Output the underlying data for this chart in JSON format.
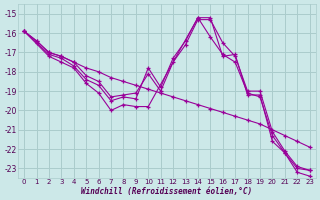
{
  "xlabel": "Windchill (Refroidissement éolien,°C)",
  "bg_color": "#cce8e8",
  "line_color": "#990099",
  "grid_color": "#aacccc",
  "xlim": [
    -0.5,
    23.5
  ],
  "ylim": [
    -23.5,
    -14.5
  ],
  "yticks": [
    -23,
    -22,
    -21,
    -20,
    -19,
    -18,
    -17,
    -16,
    -15
  ],
  "xticks": [
    0,
    1,
    2,
    3,
    4,
    5,
    6,
    7,
    8,
    9,
    10,
    11,
    12,
    13,
    14,
    15,
    16,
    17,
    18,
    19,
    20,
    21,
    22,
    23
  ],
  "lines": [
    {
      "x": [
        0,
        1,
        2,
        3,
        4,
        5,
        6,
        7,
        8,
        9,
        10,
        11,
        12,
        13,
        14,
        15,
        16,
        17,
        18,
        19,
        20,
        21,
        22,
        23
      ],
      "y": [
        -15.9,
        -16.4,
        -17.0,
        -17.2,
        -17.5,
        -17.8,
        -18.0,
        -18.3,
        -18.5,
        -18.7,
        -18.9,
        -19.1,
        -19.3,
        -19.5,
        -19.7,
        -19.9,
        -20.1,
        -20.3,
        -20.5,
        -20.7,
        -21.0,
        -21.3,
        -21.6,
        -21.9
      ]
    },
    {
      "x": [
        0,
        1,
        2,
        3,
        4,
        5,
        6,
        7,
        8,
        9,
        10,
        11,
        12,
        13,
        14,
        15,
        16,
        17,
        18,
        19,
        20,
        21,
        22,
        23
      ],
      "y": [
        -15.9,
        -16.4,
        -17.0,
        -17.2,
        -17.5,
        -18.2,
        -18.5,
        -19.3,
        -19.2,
        -19.1,
        -18.1,
        -19.0,
        -17.5,
        -16.6,
        -15.3,
        -15.3,
        -16.5,
        -17.2,
        -19.0,
        -19.0,
        -21.1,
        -22.1,
        -22.9,
        -23.1
      ]
    },
    {
      "x": [
        0,
        1,
        2,
        3,
        4,
        5,
        6,
        7,
        8,
        9,
        10,
        11,
        12,
        13,
        14,
        15,
        16,
        17,
        18,
        19,
        20,
        21,
        22,
        23
      ],
      "y": [
        -15.9,
        -16.5,
        -17.1,
        -17.3,
        -17.7,
        -18.4,
        -18.7,
        -19.5,
        -19.3,
        -19.4,
        -17.8,
        -18.8,
        -17.3,
        -16.4,
        -15.2,
        -16.2,
        -17.1,
        -17.5,
        -19.1,
        -19.3,
        -21.3,
        -22.2,
        -23.0,
        -23.1
      ]
    },
    {
      "x": [
        0,
        2,
        3,
        4,
        5,
        6,
        7,
        8,
        9,
        10,
        14,
        15,
        16,
        17,
        18,
        19,
        20,
        21,
        22,
        23
      ],
      "y": [
        -15.9,
        -17.2,
        -17.5,
        -17.8,
        -18.6,
        -19.1,
        -20.0,
        -19.7,
        -19.8,
        -19.8,
        -15.2,
        -15.2,
        -17.2,
        -17.1,
        -19.2,
        -19.2,
        -21.6,
        -22.2,
        -23.2,
        -23.4
      ]
    }
  ]
}
